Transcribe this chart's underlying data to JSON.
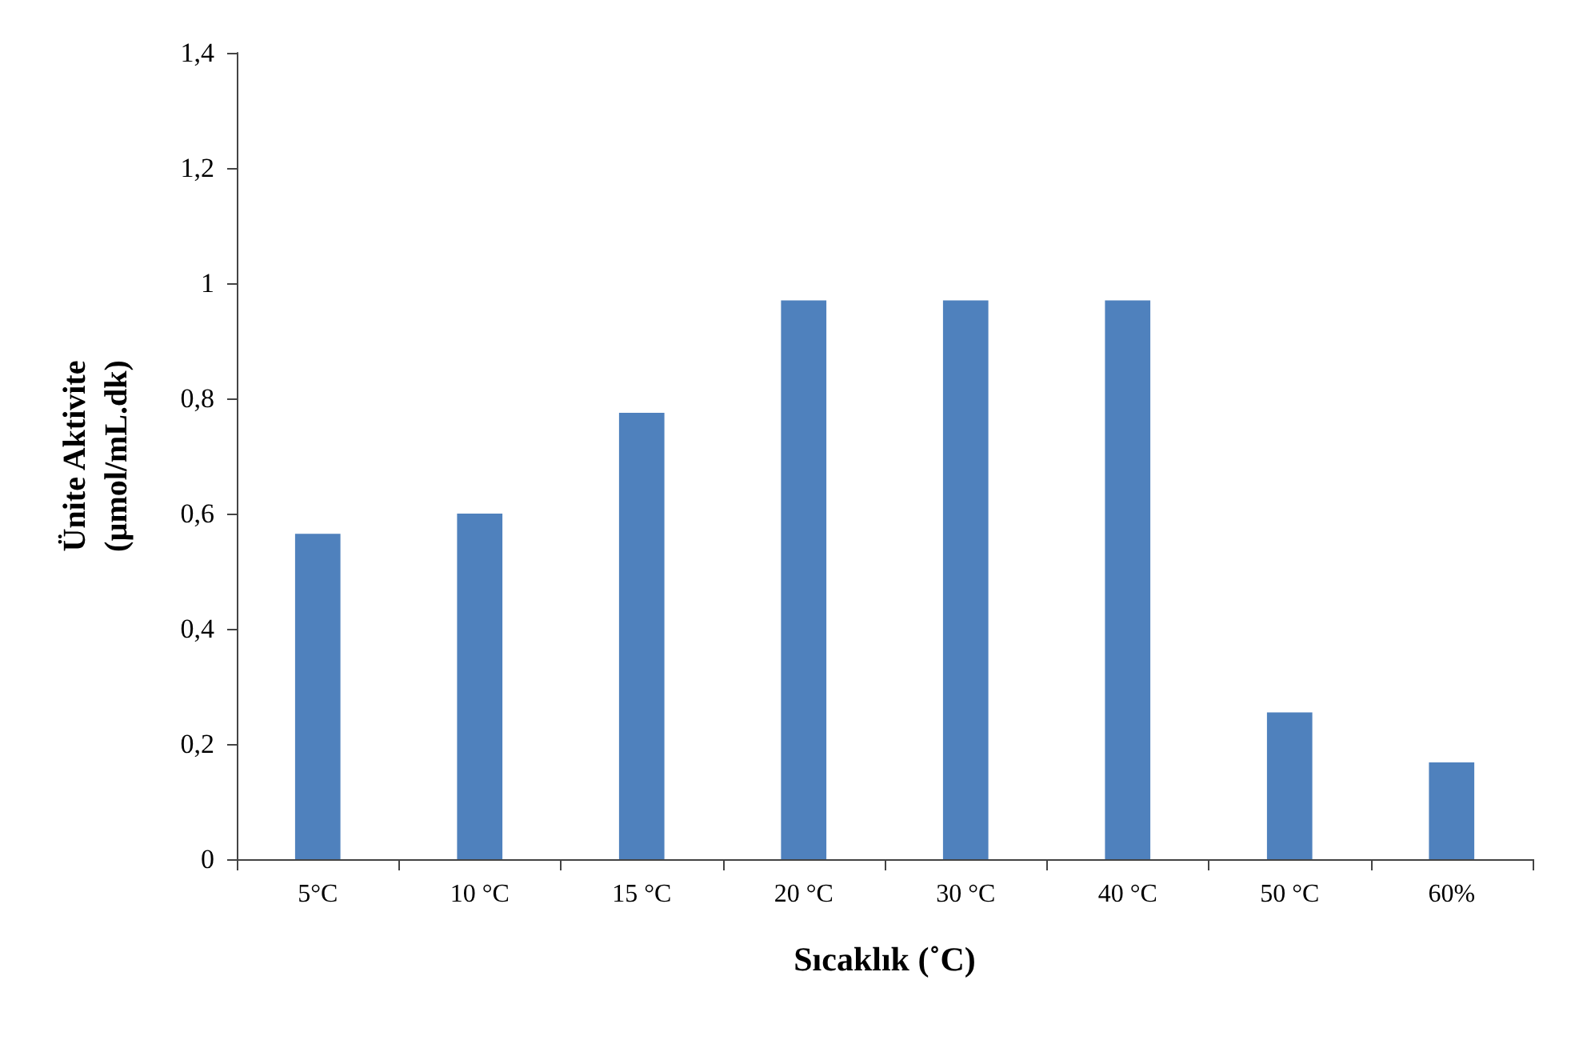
{
  "chart_data": {
    "type": "bar",
    "xlabel": "Sıcaklık (˚C)",
    "ylabel": "Ünite Aktivite\n(µmol/mL.dk)",
    "categories": [
      "5°C",
      "10 °C",
      "15 °C",
      "20 °C",
      "30 °C",
      "40 °C",
      "50 °C",
      "60%"
    ],
    "values": [
      0.565,
      0.6,
      0.775,
      0.97,
      0.97,
      0.97,
      0.255,
      0.168
    ],
    "color": "#4f81bd",
    "ylim": [
      0,
      1.4
    ],
    "yticks": [
      0,
      {
        "value": 0.2,
        "label": "0,2"
      },
      {
        "value": 0.4,
        "label": "0,4"
      },
      {
        "value": 0.6,
        "label": "0,6"
      },
      {
        "value": 0.8,
        "label": "0,8"
      },
      1,
      {
        "value": 1.2,
        "label": "1,2"
      },
      {
        "value": 1.4,
        "label": "1,4"
      }
    ],
    "grid": false
  }
}
